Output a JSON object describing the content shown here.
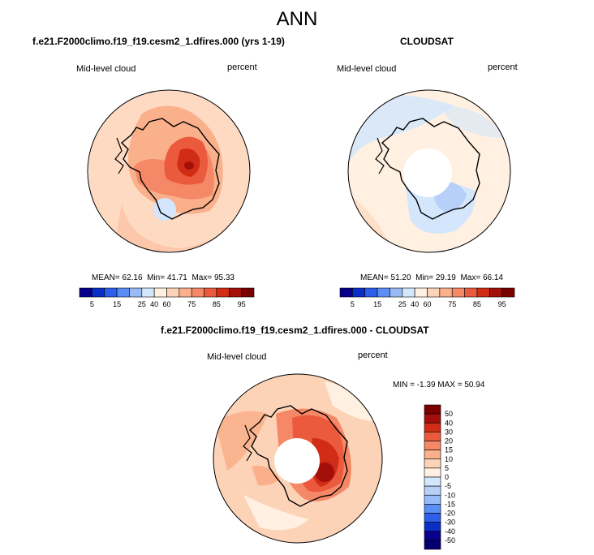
{
  "title": "ANN",
  "palette": {
    "abs": [
      "#08008c",
      "#0a2fc8",
      "#2d5fea",
      "#5a8ef4",
      "#98bbf8",
      "#d3e6fc",
      "#fff0e2",
      "#fdd3b8",
      "#fab08b",
      "#f58866",
      "#ec5a3e",
      "#d02c16",
      "#a3100a",
      "#7a0000"
    ],
    "diff": [
      "#7d0000",
      "#a3100a",
      "#d02c16",
      "#ec5a3e",
      "#f58866",
      "#fab08b",
      "#fdd3b8",
      "#fff0e2",
      "#d3e6fc",
      "#b6d0fa",
      "#98bbf8",
      "#5a8ef4",
      "#2d5fea",
      "#0a2fc8",
      "#08008c"
    ]
  },
  "chart_data": [
    {
      "type": "heatmap",
      "title": "f.e21.F2000climo.f19_f19.cesm2_1.dfires.000 (yrs 1-19)",
      "left_label": "Mid-level cloud",
      "right_label": "percent",
      "stats": {
        "mean_label": "MEAN=",
        "mean": "62.16",
        "min_label": "Min=",
        "min": "41.71",
        "max_label": "Max=",
        "max": "95.33"
      },
      "colorbar_ticks": [
        "5",
        "15",
        "25",
        "40",
        "60",
        "75",
        "85",
        "95"
      ]
    },
    {
      "type": "heatmap",
      "title": "CLOUDSAT",
      "left_label": "Mid-level cloud",
      "right_label": "percent",
      "stats": {
        "mean_label": "MEAN=",
        "mean": "51.20",
        "min_label": "Min=",
        "min": "29.19",
        "max_label": "Max=",
        "max": "66.14"
      },
      "colorbar_ticks": [
        "5",
        "15",
        "25",
        "40",
        "60",
        "75",
        "85",
        "95"
      ]
    },
    {
      "type": "heatmap",
      "title": "f.e21.F2000climo.f19_f19.cesm2_1.dfires.000 - CLOUDSAT",
      "left_label": "Mid-level cloud",
      "right_label": "percent",
      "stats_text": "MIN = -1.39 MAX = 50.94",
      "colorbar_ticks": [
        "50",
        "40",
        "30",
        "20",
        "15",
        "10",
        "5",
        "0",
        "-5",
        "-10",
        "-15",
        "-20",
        "-30",
        "-40",
        "-50"
      ]
    }
  ]
}
